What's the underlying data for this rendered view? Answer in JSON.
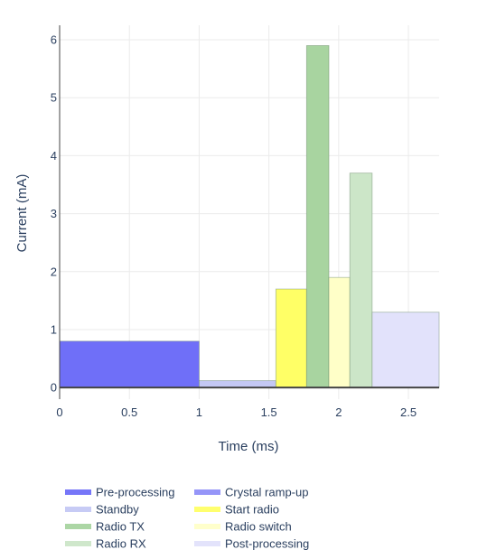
{
  "chart_data": {
    "type": "bar",
    "xlabel": "Time (ms)",
    "ylabel": "Current (mA)",
    "xlim": [
      0,
      2.72
    ],
    "ylim": [
      -0.2,
      6.25
    ],
    "xticks": [
      0,
      0.5,
      1,
      1.5,
      2,
      2.5
    ],
    "xtick_labels": [
      "0",
      "0.5",
      "1",
      "1.5",
      "2",
      "2.5"
    ],
    "yticks": [
      0,
      1,
      2,
      3,
      4,
      5,
      6
    ],
    "ytick_labels": [
      "0",
      "1",
      "2",
      "3",
      "4",
      "5",
      "6"
    ],
    "grid": true,
    "legend_position": "bottom",
    "series": [
      {
        "name": "Pre-processing",
        "color": "#6f6ff8",
        "bars": [
          {
            "x0": 0,
            "x1": 1.0,
            "y": 0.8
          }
        ]
      },
      {
        "name": "Crystal ramp-up",
        "color": "#8f8ff8",
        "bars": []
      },
      {
        "name": "Standby",
        "color": "#c4c8f4",
        "bars": [
          {
            "x0": 1.0,
            "x1": 1.55,
            "y": 0.12
          }
        ]
      },
      {
        "name": "Start radio",
        "color": "#ffff66",
        "bars": [
          {
            "x0": 1.55,
            "x1": 1.77,
            "y": 1.7
          }
        ]
      },
      {
        "name": "Radio TX",
        "color": "#a8d4a0",
        "bars": [
          {
            "x0": 1.77,
            "x1": 1.93,
            "y": 5.9
          }
        ]
      },
      {
        "name": "Radio switch",
        "color": "#ffffc8",
        "bars": [
          {
            "x0": 1.93,
            "x1": 2.08,
            "y": 1.9
          }
        ]
      },
      {
        "name": "Radio RX",
        "color": "#cce6c8",
        "bars": [
          {
            "x0": 2.08,
            "x1": 2.24,
            "y": 3.7
          }
        ]
      },
      {
        "name": "Post-processing",
        "color": "#e2e2fb",
        "bars": [
          {
            "x0": 2.24,
            "x1": 2.72,
            "y": 1.3
          }
        ]
      }
    ]
  }
}
